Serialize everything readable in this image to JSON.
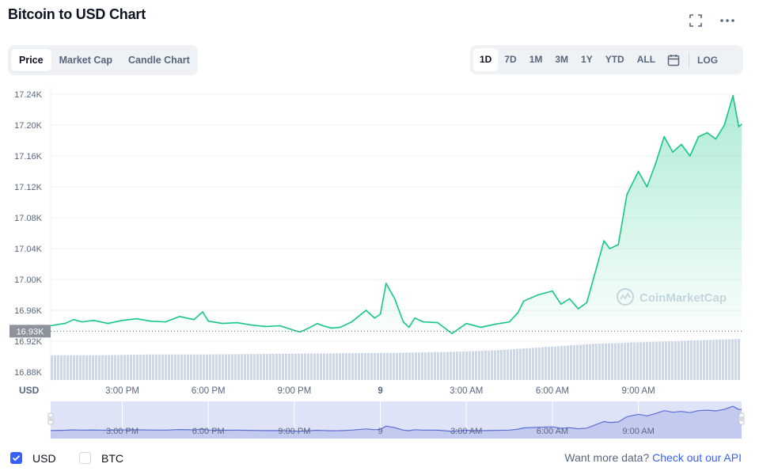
{
  "header": {
    "title": "Bitcoin to USD Chart"
  },
  "icons": {
    "fullscreen": "expand-icon",
    "more": "more-horizontal-icon",
    "calendar": "calendar-icon"
  },
  "tabs": [
    {
      "label": "Price",
      "active": true
    },
    {
      "label": "Market Cap",
      "active": false
    },
    {
      "label": "Candle Chart",
      "active": false
    }
  ],
  "ranges": [
    {
      "label": "1D",
      "active": true
    },
    {
      "label": "7D",
      "active": false
    },
    {
      "label": "1M",
      "active": false
    },
    {
      "label": "3M",
      "active": false
    },
    {
      "label": "1Y",
      "active": false
    },
    {
      "label": "YTD",
      "active": false
    },
    {
      "label": "ALL",
      "active": false
    }
  ],
  "log_label": "LOG",
  "currency_axis_label": "USD",
  "watermark": "CoinMarketCap",
  "colors": {
    "up": "#16c784",
    "down": "#ea3943",
    "accent": "#3861fb",
    "navigator": "#5b6fd6"
  },
  "chart_data": {
    "type": "area",
    "ylim": [
      16880,
      17240
    ],
    "yticks": [
      17240,
      17200,
      17160,
      17120,
      17080,
      17040,
      17000,
      16960,
      16920,
      16880
    ],
    "ytick_labels": [
      "17.24K",
      "17.20K",
      "17.16K",
      "17.12K",
      "17.08K",
      "17.04K",
      "17.00K",
      "16.96K",
      "16.92K",
      "16.88K"
    ],
    "current_price": 16933,
    "current_price_label": "16.93K",
    "xlim": [
      12.5,
      36.6
    ],
    "xticks": [
      15,
      18,
      21,
      24,
      27,
      30,
      33
    ],
    "xtick_labels": [
      "3:00 PM",
      "6:00 PM",
      "9:00 PM",
      "9",
      "3:00 AM",
      "6:00 AM",
      "9:00 AM"
    ],
    "price": {
      "x": [
        12.5,
        12.8,
        13.0,
        13.3,
        13.6,
        14.0,
        14.5,
        15.0,
        15.5,
        16.0,
        16.5,
        17.0,
        17.5,
        17.8,
        18.0,
        18.5,
        19.0,
        19.5,
        20.0,
        20.5,
        21.0,
        21.2,
        21.5,
        21.8,
        22.0,
        22.3,
        22.6,
        23.0,
        23.5,
        23.8,
        24.0,
        24.2,
        24.5,
        24.8,
        25.0,
        25.2,
        25.5,
        26.0,
        26.5,
        27.0,
        27.5,
        28.0,
        28.5,
        28.8,
        29.0,
        29.5,
        30.0,
        30.3,
        30.6,
        30.9,
        31.2,
        31.5,
        31.8,
        32.0,
        32.3,
        32.6,
        33.0,
        33.3,
        33.6,
        33.9,
        34.2,
        34.5,
        34.8,
        35.1,
        35.4,
        35.7,
        36.0,
        36.3,
        36.5,
        36.6
      ],
      "y": [
        16940,
        16942,
        16943,
        16948,
        16945,
        16947,
        16943,
        16947,
        16949,
        16946,
        16945,
        16952,
        16948,
        16958,
        16946,
        16943,
        16944,
        16941,
        16939,
        16940,
        16934,
        16932,
        16937,
        16943,
        16940,
        16937,
        16938,
        16945,
        16960,
        16950,
        16955,
        16995,
        16975,
        16945,
        16938,
        16950,
        16945,
        16944,
        16930,
        16943,
        16938,
        16942,
        16945,
        16957,
        16972,
        16980,
        16985,
        16968,
        16975,
        16962,
        16970,
        17010,
        17050,
        17040,
        17045,
        17110,
        17140,
        17120,
        17150,
        17185,
        17165,
        17175,
        17160,
        17185,
        17190,
        17182,
        17200,
        17238,
        17198,
        17201
      ]
    },
    "volume_trend": [
      0.6,
      0.6,
      0.62,
      0.62,
      0.63,
      0.64,
      0.65,
      0.66,
      0.68,
      0.72,
      0.8,
      0.88,
      0.92,
      0.96,
      1.0
    ]
  }
}
